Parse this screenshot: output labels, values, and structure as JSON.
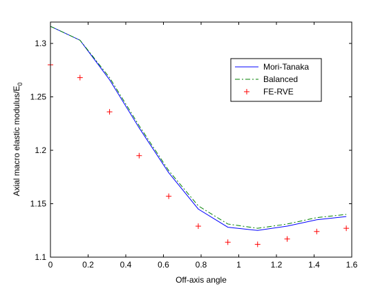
{
  "chart_data": {
    "type": "line",
    "xlabel": "Off-axis angle",
    "ylabel_main": "Axial macro elastic modulus/E",
    "ylabel_sub": "0",
    "xlim": [
      0,
      1.6
    ],
    "ylim": [
      1.1,
      1.32
    ],
    "xticks": [
      0,
      0.2,
      0.4,
      0.6,
      0.8,
      1,
      1.2,
      1.4,
      1.6
    ],
    "xtick_labels": [
      "0",
      "0.2",
      "0.4",
      "0.6",
      "0.8",
      "1",
      "1.2",
      "1.4",
      "1.6"
    ],
    "yticks": [
      1.1,
      1.15,
      1.2,
      1.25,
      1.3
    ],
    "ytick_labels": [
      "1.1",
      "1.15",
      "1.2",
      "1.25",
      "1.3"
    ],
    "grid": false,
    "legend_position": "top-right",
    "x": [
      0,
      0.157,
      0.314,
      0.471,
      0.628,
      0.785,
      0.942,
      1.1,
      1.257,
      1.414,
      1.571
    ],
    "series": [
      {
        "name": "Mori-Tanaka",
        "style": "solid",
        "color": "#0000ff",
        "values": [
          1.316,
          1.303,
          1.266,
          1.221,
          1.179,
          1.145,
          1.128,
          1.125,
          1.129,
          1.135,
          1.138
        ]
      },
      {
        "name": "Balanced",
        "style": "dash-dot",
        "color": "#007f00",
        "values": [
          1.316,
          1.303,
          1.268,
          1.223,
          1.181,
          1.148,
          1.131,
          1.127,
          1.131,
          1.137,
          1.14
        ]
      },
      {
        "name": "FE-RVE",
        "style": "plus-markers",
        "color": "#ff0000",
        "values": [
          1.28,
          1.268,
          1.236,
          1.195,
          1.157,
          1.129,
          1.114,
          1.112,
          1.117,
          1.124,
          1.127
        ]
      }
    ]
  }
}
